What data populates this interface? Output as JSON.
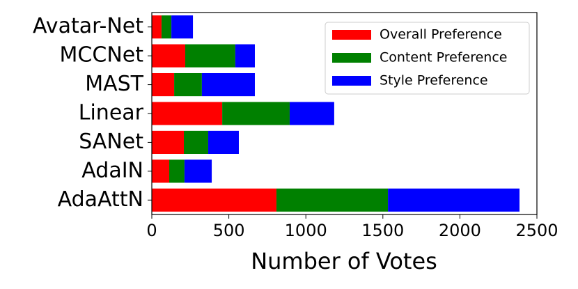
{
  "chart_data": {
    "type": "bar",
    "orientation": "horizontal",
    "stacked": true,
    "xlabel": "Number of Votes",
    "categories": [
      "Avatar-Net",
      "MCCNet",
      "MAST",
      "Linear",
      "SANet",
      "AdaIN",
      "AdaAttN"
    ],
    "series": [
      {
        "name": "Overall Preference",
        "color": "#ff0000",
        "values": [
          63,
          217,
          145,
          457,
          208,
          113,
          809
        ]
      },
      {
        "name": "Content Preference",
        "color": "#008000",
        "values": [
          64,
          325,
          180,
          438,
          158,
          99,
          724
        ]
      },
      {
        "name": "Style Preference",
        "color": "#0000ff",
        "values": [
          140,
          127,
          344,
          289,
          199,
          177,
          854
        ]
      }
    ],
    "xlim": [
      0,
      2500
    ],
    "xticks": [
      0,
      500,
      1000,
      1500,
      2000,
      2500
    ],
    "legend": "upper right"
  }
}
